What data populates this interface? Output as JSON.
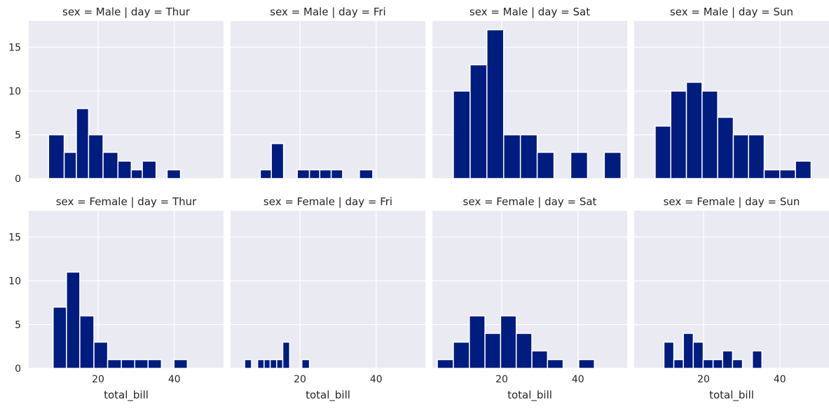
{
  "chart_data": {
    "type": "bar",
    "chart_kind": "faceted histogram",
    "xlabel": "total_bill",
    "ylabel": "",
    "xlim": [
      1.8,
      52.9
    ],
    "ylim": [
      0,
      18
    ],
    "xticks": [
      20,
      40
    ],
    "xtick_labels": [
      "20",
      "40"
    ],
    "yticks": [
      0,
      5,
      10,
      15
    ],
    "ytick_labels": [
      "0",
      "5",
      "10",
      "15"
    ],
    "grid": true,
    "bar_color": "#001c7f",
    "background_color": "#eaeaf2",
    "facets": [
      {
        "title": "sex = Male | day = Thur",
        "bins": [
          {
            "x0": 7.0,
            "x1": 11.1,
            "count": 5
          },
          {
            "x0": 11.1,
            "x1": 14.3,
            "count": 3
          },
          {
            "x0": 14.3,
            "x1": 17.5,
            "count": 8
          },
          {
            "x0": 17.5,
            "x1": 21.3,
            "count": 5
          },
          {
            "x0": 21.3,
            "x1": 25.2,
            "count": 3
          },
          {
            "x0": 25.2,
            "x1": 28.7,
            "count": 2
          },
          {
            "x0": 28.7,
            "x1": 31.6,
            "count": 1
          },
          {
            "x0": 31.6,
            "x1": 35.2,
            "count": 2
          },
          {
            "x0": 38.1,
            "x1": 41.6,
            "count": 1
          }
        ]
      },
      {
        "title": "sex = Male | day = Fri",
        "bins": [
          {
            "x0": 9.6,
            "x1": 12.5,
            "count": 1
          },
          {
            "x0": 12.5,
            "x1": 15.7,
            "count": 4
          },
          {
            "x0": 19.3,
            "x1": 22.5,
            "count": 1
          },
          {
            "x0": 22.5,
            "x1": 25.2,
            "count": 1
          },
          {
            "x0": 25.2,
            "x1": 28.2,
            "count": 1
          },
          {
            "x0": 28.2,
            "x1": 31.2,
            "count": 1
          },
          {
            "x0": 35.6,
            "x1": 39.1,
            "count": 1
          }
        ]
      },
      {
        "title": "sex = Male | day = Sat",
        "bins": [
          {
            "x0": 7.3,
            "x1": 11.7,
            "count": 10
          },
          {
            "x0": 11.7,
            "x1": 16.1,
            "count": 13
          },
          {
            "x0": 16.1,
            "x1": 20.5,
            "count": 17
          },
          {
            "x0": 20.5,
            "x1": 24.9,
            "count": 5
          },
          {
            "x0": 24.9,
            "x1": 29.3,
            "count": 5
          },
          {
            "x0": 29.3,
            "x1": 33.7,
            "count": 3
          },
          {
            "x0": 38.1,
            "x1": 42.5,
            "count": 3
          },
          {
            "x0": 46.9,
            "x1": 51.3,
            "count": 3
          }
        ]
      },
      {
        "title": "sex = Male | day = Sun",
        "bins": [
          {
            "x0": 7.3,
            "x1": 11.4,
            "count": 6
          },
          {
            "x0": 11.4,
            "x1": 15.5,
            "count": 10
          },
          {
            "x0": 15.5,
            "x1": 19.6,
            "count": 11
          },
          {
            "x0": 19.6,
            "x1": 23.7,
            "count": 10
          },
          {
            "x0": 23.7,
            "x1": 27.8,
            "count": 7
          },
          {
            "x0": 27.8,
            "x1": 31.8,
            "count": 5
          },
          {
            "x0": 31.8,
            "x1": 35.9,
            "count": 5
          },
          {
            "x0": 35.9,
            "x1": 40.0,
            "count": 1
          },
          {
            "x0": 40.0,
            "x1": 44.1,
            "count": 1
          },
          {
            "x0": 44.1,
            "x1": 48.2,
            "count": 2
          }
        ]
      },
      {
        "title": "sex = Female | day = Thur",
        "bins": [
          {
            "x0": 8.2,
            "x1": 11.7,
            "count": 7
          },
          {
            "x0": 11.7,
            "x1": 15.2,
            "count": 11
          },
          {
            "x0": 15.2,
            "x1": 18.9,
            "count": 6
          },
          {
            "x0": 18.9,
            "x1": 22.5,
            "count": 3
          },
          {
            "x0": 22.5,
            "x1": 26.1,
            "count": 1
          },
          {
            "x0": 26.1,
            "x1": 29.6,
            "count": 1
          },
          {
            "x0": 29.6,
            "x1": 33.1,
            "count": 1
          },
          {
            "x0": 33.1,
            "x1": 36.6,
            "count": 1
          },
          {
            "x0": 39.9,
            "x1": 43.4,
            "count": 1
          }
        ]
      },
      {
        "title": "sex = Female | day = Fri",
        "bins": [
          {
            "x0": 5.5,
            "x1": 7.3,
            "count": 1
          },
          {
            "x0": 8.9,
            "x1": 10.6,
            "count": 1
          },
          {
            "x0": 10.6,
            "x1": 12.2,
            "count": 1
          },
          {
            "x0": 12.2,
            "x1": 13.9,
            "count": 1
          },
          {
            "x0": 13.9,
            "x1": 15.5,
            "count": 1
          },
          {
            "x0": 15.5,
            "x1": 17.3,
            "count": 3
          },
          {
            "x0": 20.5,
            "x1": 22.5,
            "count": 1
          }
        ]
      },
      {
        "title": "sex = Female | day = Sat",
        "bins": [
          {
            "x0": 3.1,
            "x1": 7.3,
            "count": 1
          },
          {
            "x0": 7.3,
            "x1": 11.5,
            "count": 3
          },
          {
            "x0": 11.5,
            "x1": 15.6,
            "count": 6
          },
          {
            "x0": 15.6,
            "x1": 19.7,
            "count": 4
          },
          {
            "x0": 19.7,
            "x1": 23.8,
            "count": 6
          },
          {
            "x0": 23.8,
            "x1": 27.9,
            "count": 4
          },
          {
            "x0": 27.9,
            "x1": 32.0,
            "count": 2
          },
          {
            "x0": 32.0,
            "x1": 36.1,
            "count": 1
          },
          {
            "x0": 40.2,
            "x1": 44.3,
            "count": 1
          }
        ]
      },
      {
        "title": "sex = Female | day = Sun",
        "bins": [
          {
            "x0": 9.6,
            "x1": 12.2,
            "count": 3
          },
          {
            "x0": 12.2,
            "x1": 14.7,
            "count": 1
          },
          {
            "x0": 14.7,
            "x1": 17.3,
            "count": 4
          },
          {
            "x0": 17.3,
            "x1": 19.9,
            "count": 3
          },
          {
            "x0": 19.9,
            "x1": 22.5,
            "count": 1
          },
          {
            "x0": 22.5,
            "x1": 25.0,
            "count": 1
          },
          {
            "x0": 25.0,
            "x1": 27.6,
            "count": 2
          },
          {
            "x0": 27.6,
            "x1": 30.2,
            "count": 1
          },
          {
            "x0": 32.8,
            "x1": 35.3,
            "count": 2
          }
        ]
      }
    ]
  }
}
